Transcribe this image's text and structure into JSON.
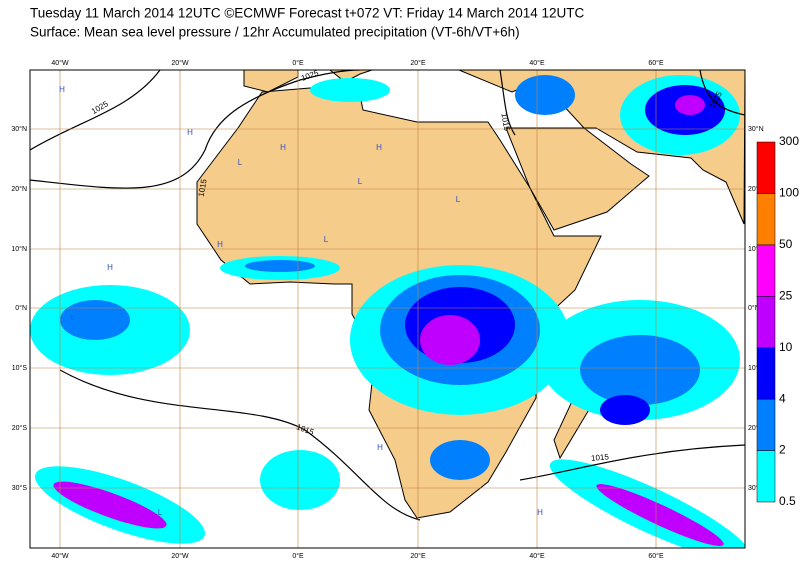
{
  "header": {
    "line1": "Tuesday 11 March 2014 12UTC ©ECMWF Forecast t+072 VT: Friday 14 March 2014 12UTC",
    "line2": "Surface: Mean sea level pressure / 12hr Accumulated precipitation (VT-6h/VT+6h)"
  },
  "map": {
    "longitude_labels": [
      "40°W",
      "20°W",
      "0°E",
      "20°E",
      "40°E",
      "60°E"
    ],
    "latitude_labels": [
      "30°N",
      "20°N",
      "10°N",
      "0°N",
      "10°S",
      "20°S",
      "30°S"
    ],
    "isobar_labels": [
      "1025",
      "1025",
      "1015",
      "1015",
      "1015",
      "1015",
      "1015"
    ],
    "pressure_centers": [
      "H",
      "H",
      "L",
      "H",
      "H",
      "L",
      "L",
      "L",
      "H",
      "H",
      "L",
      "H",
      "L",
      "H"
    ]
  },
  "colorbar": {
    "levels": [
      0.5,
      2,
      4,
      10,
      25,
      50,
      100,
      300
    ],
    "colors": [
      "#00ffff",
      "#0080ff",
      "#0000ff",
      "#c000ff",
      "#ff00ff",
      "#ff8000",
      "#ff0000"
    ]
  }
}
